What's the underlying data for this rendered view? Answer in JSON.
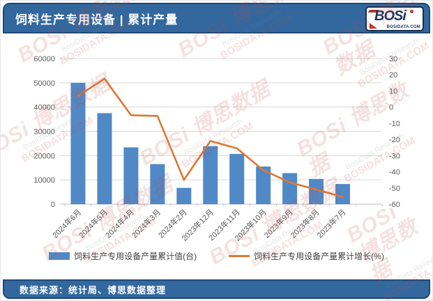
{
  "header": {
    "title": "饲料生产专用设备 | 累计产量",
    "logo": {
      "name": "BOSi",
      "domain": "BOSIDATA.COM"
    }
  },
  "footer": {
    "source": "数据来源：统计局、博思数据整理"
  },
  "watermark": {
    "brand": "BOSi",
    "brand_cn": "博思数据",
    "research": "BosiData Research",
    "domain": "BOSIDATA.COM"
  },
  "chart_data": {
    "type": "bar+line combo",
    "title": "饲料生产专用设备 | 累计产量",
    "categories": [
      "2024年6月",
      "2024年5月",
      "2024年4月",
      "2024年3月",
      "2024年2月",
      "2023年12月",
      "2023年11月",
      "2023年10月",
      "2023年9月",
      "2023年8月",
      "2023年7月"
    ],
    "series": [
      {
        "name": "饲料生产专用设备产量累计值(台)",
        "type": "bar",
        "axis": "left",
        "color": "#5089C6",
        "values": [
          50000,
          37500,
          23400,
          16500,
          6700,
          23900,
          20700,
          15500,
          12800,
          10400,
          8300
        ]
      },
      {
        "name": "饲料生产专用设备产量累计增长(%)",
        "type": "line",
        "axis": "right",
        "color": "#DE7733",
        "values": [
          7,
          17.5,
          -5,
          -5.5,
          -45,
          -21,
          -25.5,
          -39,
          -46.5,
          -51,
          -55.5
        ]
      }
    ],
    "left_axis": {
      "min": 0,
      "max": 60000,
      "step": 10000
    },
    "right_axis": {
      "min": -60,
      "max": 30,
      "step": 10
    },
    "grid": "horizontal gridlines from left axis",
    "legend_position": "bottom",
    "x_label_rotation_deg": -45
  }
}
